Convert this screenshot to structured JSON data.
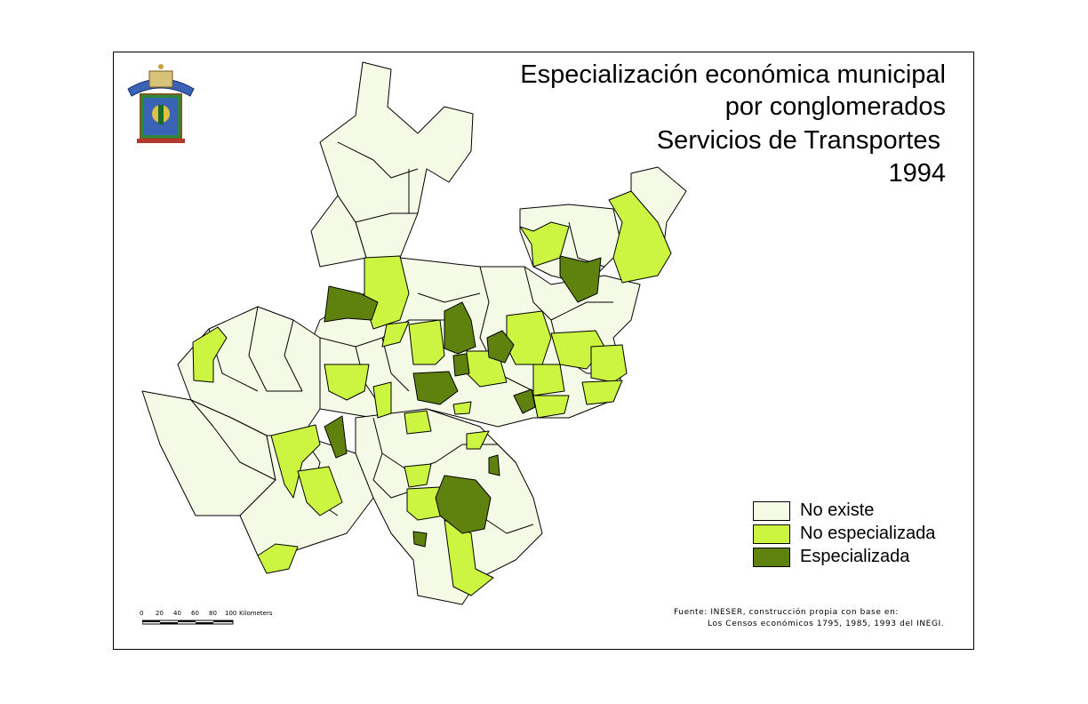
{
  "title": {
    "line1": "Especialización económica municipal",
    "line2": "por conglomerados",
    "line3": "Servicios de Transportes",
    "line4": "1994"
  },
  "legend": [
    {
      "label": "No existe",
      "color": "#f5fae6"
    },
    {
      "label": "No especializada",
      "color": "#ccf542"
    },
    {
      "label": "Especializada",
      "color": "#5f820f"
    }
  ],
  "scale": {
    "ticks": [
      "0",
      "20",
      "40",
      "60",
      "80",
      "100"
    ],
    "unit": "Kilometers"
  },
  "source": {
    "line1": "Fuente: INESER, construcción propia con base en:",
    "line2": "Los Censos económicos 1795, 1985, 1993 del INEGI."
  },
  "colors": {
    "none": "#f5fae6",
    "not_specialized": "#ccf542",
    "specialized": "#5f820f",
    "border": "#000000"
  }
}
